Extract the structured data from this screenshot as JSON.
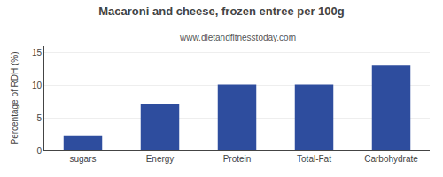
{
  "chart_data": {
    "type": "bar",
    "title": "Macaroni and cheese, frozen entree per 100g",
    "subtitle": "www.dietandfitnesstoday.com",
    "categories": [
      "sugars",
      "Energy",
      "Protein",
      "Total-Fat",
      "Carbohydrate"
    ],
    "values": [
      2.2,
      7.2,
      10.1,
      10.1,
      13.0
    ],
    "color": "#2e4d9e",
    "ylabel": "Percentage of RDH (%)",
    "ylim": [
      0,
      16
    ],
    "yticks": [
      0,
      5,
      10,
      15
    ],
    "grid": true
  }
}
